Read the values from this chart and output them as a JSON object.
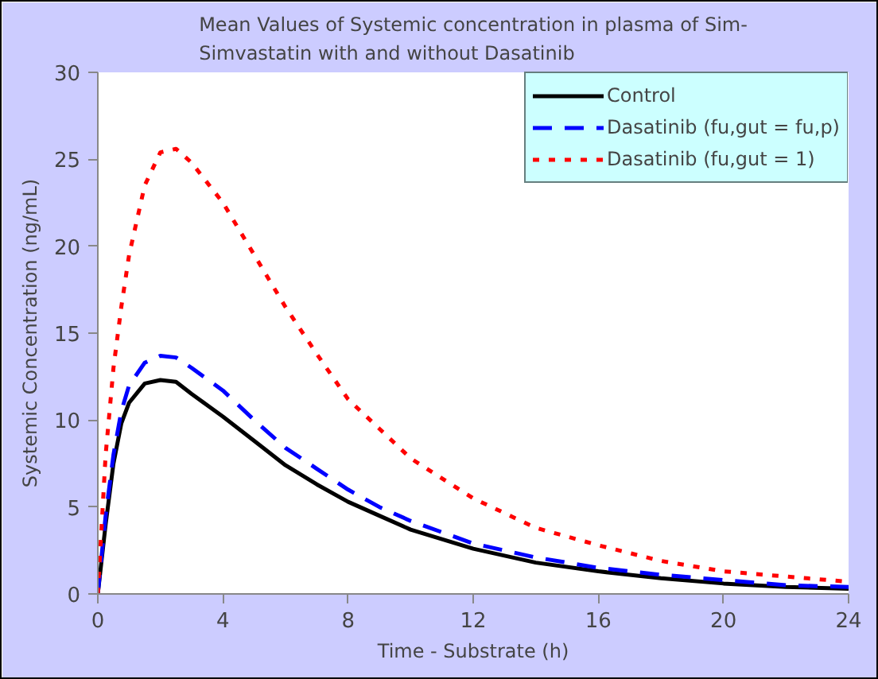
{
  "chart_data": {
    "type": "line",
    "title": "Mean Values of Systemic concentration in plasma of Sim-\nSimvastatin with and without Dasatinib",
    "xlabel": "Time - Substrate (h)",
    "ylabel": "Systemic Concentration (ng/mL)",
    "xlim": [
      0,
      24
    ],
    "xticks": [
      0,
      4,
      8,
      12,
      16,
      20,
      24
    ],
    "ylim": [
      0,
      30
    ],
    "yticks": [
      0,
      5,
      10,
      15,
      20,
      25,
      30
    ],
    "grid": false,
    "legend": "top right",
    "marker": "none",
    "x": [
      0,
      0.25,
      0.5,
      0.75,
      1,
      1.5,
      2,
      2.5,
      3,
      4,
      5,
      6,
      7,
      8,
      9,
      10,
      12,
      14,
      16,
      18,
      20,
      22,
      24
    ],
    "series": [
      {
        "name": "Control",
        "color": "#000000",
        "line_style": "solid",
        "values": [
          0,
          4,
          7.5,
          9.8,
          11,
          12.1,
          12.3,
          12.2,
          11.5,
          10.2,
          8.8,
          7.4,
          6.3,
          5.3,
          4.5,
          3.7,
          2.6,
          1.8,
          1.3,
          0.9,
          0.6,
          0.4,
          0.3
        ]
      },
      {
        "name": "Dasatinib (fu,gut = fu,p)",
        "color": "#0000ff",
        "line_style": "dashed",
        "values": [
          0,
          4.5,
          8,
          10.5,
          12,
          13.3,
          13.7,
          13.6,
          13,
          11.7,
          10,
          8.4,
          7.2,
          6,
          5,
          4.2,
          2.9,
          2.1,
          1.5,
          1.1,
          0.8,
          0.5,
          0.4
        ]
      },
      {
        "name": "Dasatinib (fu,gut = 1)",
        "color": "#ff0000",
        "line_style": "dotted",
        "values": [
          0,
          8,
          13,
          16.5,
          19.5,
          23.5,
          25.4,
          25.6,
          24.8,
          22.5,
          19.5,
          16.5,
          13.8,
          11.2,
          9.5,
          7.8,
          5.5,
          3.8,
          2.8,
          1.9,
          1.3,
          1,
          0.7
        ]
      }
    ]
  }
}
